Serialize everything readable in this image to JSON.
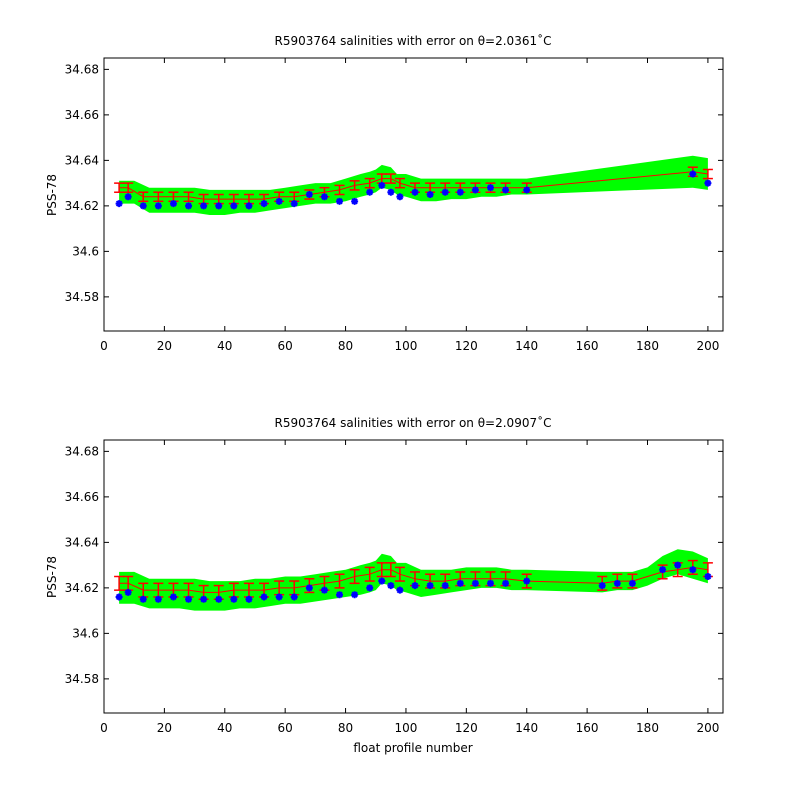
{
  "chart_data": [
    {
      "type": "line",
      "title": "R5903764 salinities with error on θ=2.0361˚C",
      "xlabel": "",
      "ylabel": "PSS-78",
      "xlim": [
        0,
        205
      ],
      "ylim": [
        34.565,
        34.685
      ],
      "x_ticks": [
        "0",
        "20",
        "40",
        "60",
        "80",
        "100",
        "120",
        "140",
        "160",
        "180",
        "200"
      ],
      "y_ticks": [
        "34.58",
        "34.6",
        "34.62",
        "34.64",
        "34.66",
        "34.68"
      ],
      "grid": false,
      "colors": {
        "error_band": "#00ff00",
        "mapped_salinity": "#ff0000",
        "float_salinity": "#0000ff"
      },
      "error_band": {
        "x": [
          5,
          10,
          15,
          20,
          25,
          30,
          35,
          40,
          45,
          50,
          55,
          60,
          65,
          70,
          75,
          80,
          85,
          88,
          90,
          92,
          95,
          97,
          100,
          105,
          110,
          115,
          120,
          125,
          130,
          135,
          140,
          195,
          200
        ],
        "upper": [
          34.631,
          34.631,
          34.628,
          34.628,
          34.628,
          34.628,
          34.627,
          34.627,
          34.627,
          34.627,
          34.627,
          34.628,
          34.629,
          34.63,
          34.63,
          34.632,
          34.634,
          34.635,
          34.636,
          34.638,
          34.637,
          34.634,
          34.634,
          34.632,
          34.632,
          34.632,
          34.632,
          34.632,
          34.632,
          34.632,
          34.632,
          34.642,
          34.641
        ],
        "lower": [
          34.621,
          34.621,
          34.617,
          34.617,
          34.617,
          34.617,
          34.616,
          34.616,
          34.617,
          34.617,
          34.618,
          34.619,
          34.62,
          34.621,
          34.621,
          34.622,
          34.624,
          34.625,
          34.626,
          34.628,
          34.627,
          34.625,
          34.624,
          34.622,
          34.622,
          34.623,
          34.623,
          34.624,
          34.624,
          34.625,
          34.625,
          34.628,
          34.627
        ]
      },
      "mapped_salinity": {
        "x": [
          5,
          8,
          13,
          18,
          23,
          28,
          33,
          38,
          43,
          48,
          53,
          58,
          63,
          68,
          73,
          78,
          83,
          88,
          92,
          95,
          98,
          103,
          108,
          113,
          118,
          123,
          128,
          133,
          140,
          195,
          200
        ],
        "y": [
          34.628,
          34.628,
          34.624,
          34.624,
          34.624,
          34.624,
          34.623,
          34.623,
          34.623,
          34.623,
          34.623,
          34.624,
          34.624,
          34.625,
          34.626,
          34.627,
          34.629,
          34.63,
          34.632,
          34.632,
          34.63,
          34.628,
          34.628,
          34.628,
          34.628,
          34.628,
          34.628,
          34.628,
          34.628,
          34.635,
          34.634
        ],
        "err": 0.002
      },
      "float_salinity": {
        "x": [
          5,
          8,
          13,
          18,
          23,
          28,
          33,
          38,
          43,
          48,
          53,
          58,
          63,
          68,
          73,
          78,
          83,
          88,
          92,
          95,
          98,
          103,
          108,
          113,
          118,
          123,
          128,
          133,
          140,
          195,
          200
        ],
        "y": [
          34.621,
          34.624,
          34.62,
          34.62,
          34.621,
          34.62,
          34.62,
          34.62,
          34.62,
          34.62,
          34.621,
          34.622,
          34.621,
          34.625,
          34.624,
          34.622,
          34.622,
          34.626,
          34.629,
          34.626,
          34.624,
          34.626,
          34.625,
          34.626,
          34.626,
          34.627,
          34.628,
          34.627,
          34.627,
          34.634,
          34.63
        ]
      }
    },
    {
      "type": "line",
      "title": "R5903764 salinities with error on θ=2.0907˚C",
      "xlabel": "float profile number",
      "ylabel": "PSS-78",
      "xlim": [
        0,
        205
      ],
      "ylim": [
        34.565,
        34.685
      ],
      "x_ticks": [
        "0",
        "20",
        "40",
        "60",
        "80",
        "100",
        "120",
        "140",
        "160",
        "180",
        "200"
      ],
      "y_ticks": [
        "34.58",
        "34.6",
        "34.62",
        "34.64",
        "34.66",
        "34.68"
      ],
      "grid": false,
      "colors": {
        "error_band": "#00ff00",
        "mapped_salinity": "#ff0000",
        "float_salinity": "#0000ff"
      },
      "error_band": {
        "x": [
          5,
          10,
          15,
          20,
          25,
          30,
          35,
          40,
          45,
          50,
          55,
          60,
          65,
          70,
          75,
          80,
          85,
          88,
          90,
          92,
          95,
          97,
          100,
          105,
          110,
          115,
          120,
          125,
          130,
          135,
          140,
          165,
          170,
          175,
          180,
          185,
          190,
          195,
          200
        ],
        "upper": [
          34.627,
          34.627,
          34.624,
          34.624,
          34.624,
          34.624,
          34.623,
          34.623,
          34.623,
          34.624,
          34.624,
          34.625,
          34.625,
          34.626,
          34.627,
          34.628,
          34.63,
          34.631,
          34.632,
          34.635,
          34.634,
          34.631,
          34.631,
          34.628,
          34.628,
          34.628,
          34.629,
          34.629,
          34.629,
          34.628,
          34.628,
          34.627,
          34.627,
          34.627,
          34.629,
          34.634,
          34.637,
          34.636,
          34.633
        ],
        "lower": [
          34.613,
          34.613,
          34.611,
          34.611,
          34.611,
          34.61,
          34.61,
          34.61,
          34.611,
          34.611,
          34.612,
          34.613,
          34.613,
          34.614,
          34.615,
          34.616,
          34.617,
          34.618,
          34.619,
          34.622,
          34.621,
          34.619,
          34.618,
          34.616,
          34.617,
          34.618,
          34.619,
          34.62,
          34.62,
          34.619,
          34.619,
          34.618,
          34.619,
          34.619,
          34.621,
          34.624,
          34.626,
          34.624,
          34.622
        ]
      },
      "mapped_salinity": {
        "x": [
          5,
          8,
          13,
          18,
          23,
          28,
          33,
          38,
          43,
          48,
          53,
          58,
          63,
          68,
          73,
          78,
          83,
          88,
          92,
          95,
          98,
          103,
          108,
          113,
          118,
          123,
          128,
          133,
          140,
          165,
          170,
          175,
          185,
          190,
          195,
          200
        ],
        "y": [
          34.622,
          34.622,
          34.619,
          34.619,
          34.619,
          34.619,
          34.618,
          34.618,
          34.619,
          34.619,
          34.619,
          34.62,
          34.62,
          34.621,
          34.622,
          34.623,
          34.625,
          34.626,
          34.628,
          34.628,
          34.626,
          34.624,
          34.623,
          34.623,
          34.624,
          34.624,
          34.624,
          34.624,
          34.623,
          34.622,
          34.623,
          34.623,
          34.627,
          34.628,
          34.629,
          34.628
        ],
        "err": 0.003
      },
      "float_salinity": {
        "x": [
          5,
          8,
          13,
          18,
          23,
          28,
          33,
          38,
          43,
          48,
          53,
          58,
          63,
          68,
          73,
          78,
          83,
          88,
          92,
          95,
          98,
          103,
          108,
          113,
          118,
          123,
          128,
          133,
          140,
          165,
          170,
          175,
          185,
          190,
          195,
          200
        ],
        "y": [
          34.616,
          34.618,
          34.615,
          34.615,
          34.616,
          34.615,
          34.615,
          34.615,
          34.615,
          34.615,
          34.616,
          34.616,
          34.616,
          34.62,
          34.619,
          34.617,
          34.617,
          34.62,
          34.623,
          34.621,
          34.619,
          34.621,
          34.621,
          34.621,
          34.622,
          34.622,
          34.622,
          34.622,
          34.623,
          34.621,
          34.622,
          34.622,
          34.628,
          34.63,
          34.628,
          34.625
        ]
      }
    }
  ]
}
